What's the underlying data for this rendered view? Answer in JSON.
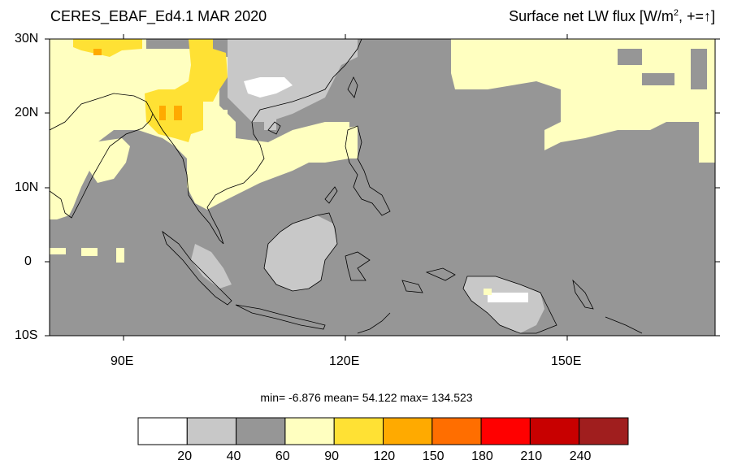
{
  "header": {
    "left_title": "CERES_EBAF_Ed4.1 MAR 2020",
    "right_title_main": "Surface net LW flux [W/m",
    "right_title_sup": "2",
    "right_title_tail": ", +=↑]"
  },
  "axes": {
    "lat_labels": [
      "30N",
      "20N",
      "10N",
      "0",
      "10S"
    ],
    "lon_labels": [
      "90E",
      "120E",
      "150E"
    ],
    "lat_range": [
      -10,
      30
    ],
    "lon_range": [
      80,
      170
    ]
  },
  "stats": {
    "text": "min=  -6.876  mean=  54.122  max= 134.523",
    "min": -6.876,
    "mean": 54.122,
    "max": 134.523
  },
  "colorbar": {
    "labels": [
      "20",
      "40",
      "60",
      "90",
      "120",
      "150",
      "180",
      "210",
      "240"
    ],
    "colors": [
      "#ffffff",
      "#c8c8c8",
      "#969696",
      "#ffffc0",
      "#ffe134",
      "#ffaa00",
      "#ff6e00",
      "#ff0000",
      "#c80000",
      "#a01e1e"
    ]
  },
  "map": {
    "coastline_color": "#000000",
    "ocean_color": "#969696"
  }
}
